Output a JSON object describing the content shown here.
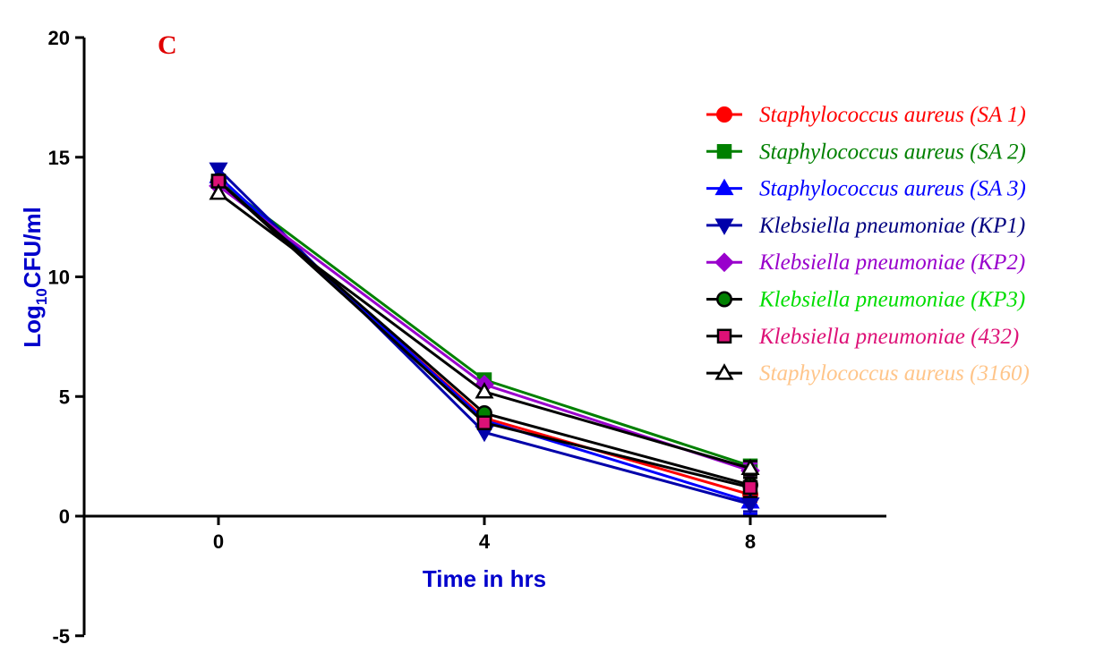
{
  "chart_data": {
    "type": "line",
    "panel_label": "C",
    "xlabel": "Time in hrs",
    "ylabel_main": "Log",
    "ylabel_sub": "10",
    "ylabel_tail": "CFU/ml",
    "x": [
      0,
      4,
      8
    ],
    "x_ticks": [
      "0",
      "4",
      "8"
    ],
    "y_ticks": [
      "20",
      "15",
      "10",
      "5",
      "0",
      "-5"
    ],
    "ylim": [
      -5,
      20
    ],
    "xlim": [
      -2,
      10
    ],
    "grid": false,
    "legend_position": "right",
    "series": [
      {
        "name": "Staphylococcus aureus (SA 1)",
        "values": [
          14.0,
          4.1,
          0.9
        ],
        "color": "#ff0000",
        "text_color": "#ff0000",
        "marker": "circle",
        "error": [
          0,
          0,
          0.3
        ]
      },
      {
        "name": "Staphylococcus aureus (SA 2)",
        "values": [
          14.0,
          5.7,
          2.1
        ],
        "color": "#008000",
        "text_color": "#008000",
        "marker": "square",
        "error": [
          0,
          0,
          0.2
        ]
      },
      {
        "name": "Staphylococcus aureus (SA 3)",
        "values": [
          14.2,
          4.0,
          0.6
        ],
        "color": "#0000ff",
        "text_color": "#0000ff",
        "marker": "triangle-up",
        "error": [
          0,
          0,
          0.5
        ]
      },
      {
        "name": "Klebsiella pneumoniae (KP1)",
        "values": [
          14.5,
          3.5,
          0.5
        ],
        "color": "#0000aa",
        "text_color": "#000080",
        "marker": "triangle-down",
        "error": [
          0,
          0,
          0.3
        ]
      },
      {
        "name": "Klebsiella pneumoniae (KP2)",
        "values": [
          13.8,
          5.5,
          1.9
        ],
        "color": "#9900cc",
        "text_color": "#9900cc",
        "marker": "diamond",
        "error": [
          0,
          0,
          0.3
        ]
      },
      {
        "name": "Klebsiella pneumoniae (KP3)",
        "values": [
          14.0,
          4.3,
          1.3
        ],
        "color": "#000000",
        "text_color": "#00dd00",
        "marker": "circle",
        "fill": "#008000",
        "error": [
          0,
          0,
          0.3
        ]
      },
      {
        "name": "Klebsiella pneumoniae  (432)",
        "values": [
          14.0,
          3.9,
          1.2
        ],
        "color": "#000000",
        "text_color": "#dd1177",
        "marker": "square",
        "fill": "#dd1177",
        "error": [
          0,
          0,
          0.4
        ]
      },
      {
        "name": "Staphylococcus aureus  (3160)",
        "values": [
          13.5,
          5.2,
          2.0
        ],
        "color": "#000000",
        "text_color": "#ffc58a",
        "marker": "triangle-up-open",
        "fill": "#ffffff",
        "error": [
          0,
          0,
          0.3
        ]
      }
    ]
  }
}
